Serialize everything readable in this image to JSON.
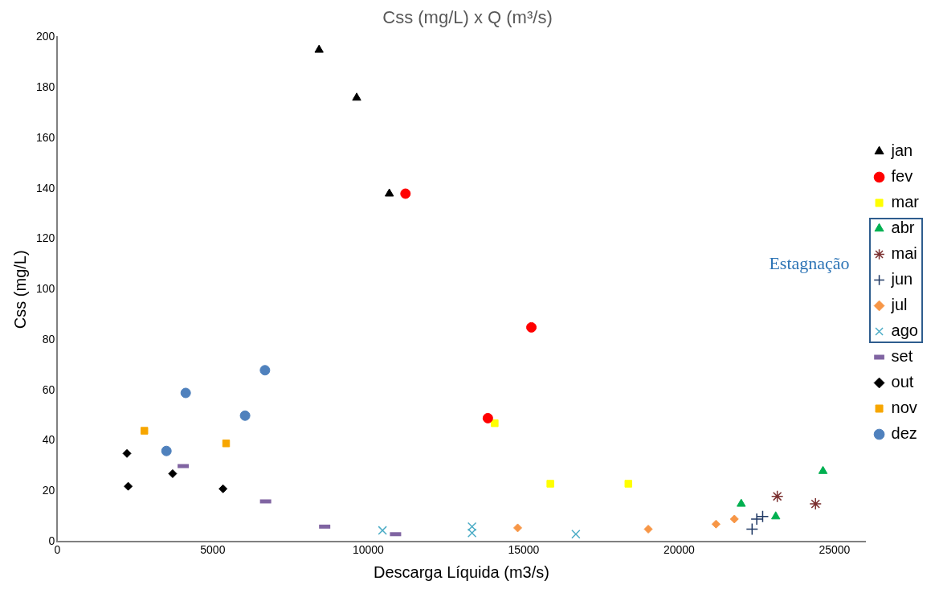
{
  "chart_data": {
    "type": "scatter",
    "title": "Css (mg/L) x Q (m³/s)",
    "xlabel": "Descarga Líquida (m3/s)",
    "ylabel": "Css (mg/L)",
    "annotations": [
      "Estagnação"
    ],
    "xlim": [
      0,
      26000
    ],
    "xticks": [
      0,
      5000,
      10000,
      15000,
      20000,
      25000
    ],
    "ylim": [
      0,
      200
    ],
    "yticks": [
      0,
      20,
      40,
      60,
      80,
      100,
      120,
      140,
      160,
      180,
      200
    ],
    "grid": false,
    "legend": "right",
    "series": [
      {
        "name": "jan",
        "color": "#000000",
        "marker": "triangle",
        "x": [
          8420,
          9630,
          10680
        ],
        "values": [
          195,
          176,
          138
        ]
      },
      {
        "name": "fev",
        "color": "#ff0000",
        "marker": "circle",
        "x": [
          11200,
          15250,
          13850
        ],
        "values": [
          138,
          85,
          49
        ]
      },
      {
        "name": "mar",
        "color": "#ffff00",
        "marker": "square",
        "x": [
          14070,
          15860,
          18370
        ],
        "values": [
          47,
          23,
          23
        ]
      },
      {
        "name": "abr",
        "color": "#00b050",
        "marker": "triangle",
        "x": [
          22000,
          23110,
          24630
        ],
        "values": [
          15,
          10,
          28
        ]
      },
      {
        "name": "mai",
        "color": "#7b3030",
        "marker": "cross",
        "x": [
          23160,
          24390
        ],
        "values": [
          18,
          15
        ]
      },
      {
        "name": "jun",
        "color": "#1f3864",
        "marker": "plus",
        "x": [
          22350,
          22500,
          22690
        ],
        "values": [
          5,
          9,
          10
        ]
      },
      {
        "name": "jul",
        "color": "#f79646",
        "marker": "diamond",
        "x": [
          14810,
          19010,
          21190,
          21780
        ],
        "values": [
          5.5,
          5,
          7,
          9
        ]
      },
      {
        "name": "ago",
        "color": "#4bacc6",
        "marker": "x",
        "x": [
          10460,
          13340,
          13340,
          16680
        ],
        "values": [
          4.5,
          6,
          3.5,
          3
        ]
      },
      {
        "name": "set",
        "color": "#8064a2",
        "x": [
          4050,
          6700,
          8600,
          10880
        ],
        "values": [
          30,
          16,
          6,
          3
        ]
      },
      {
        "name": "out",
        "color": "#000000",
        "marker": "diamond",
        "x": [
          2240,
          2280,
          3710,
          5330
        ],
        "values": [
          35,
          22,
          27,
          21
        ]
      },
      {
        "name": "nov",
        "color": "#f7a600",
        "marker": "square",
        "x": [
          2800,
          5430
        ],
        "values": [
          44,
          39
        ]
      },
      {
        "name": "dez",
        "color": "#4f81bd",
        "marker": "circle",
        "x": [
          3510,
          4130,
          6040,
          6680
        ],
        "values": [
          36,
          59,
          50,
          68
        ]
      }
    ]
  }
}
